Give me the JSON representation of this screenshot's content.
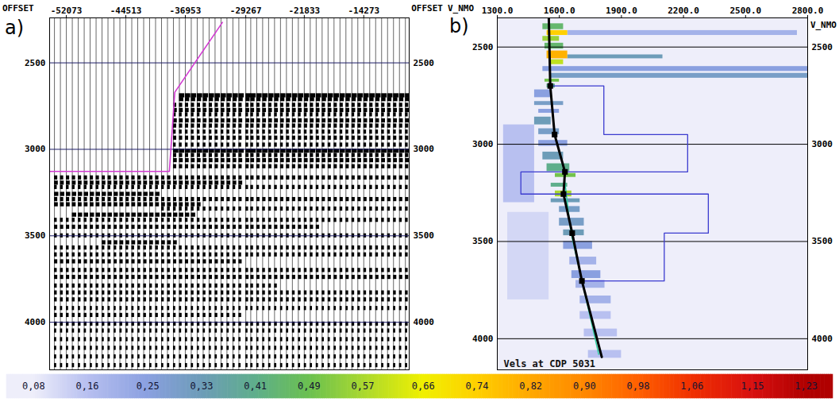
{
  "chart_data": [
    {
      "type": "seismic_gather",
      "panel_label": "a)",
      "x_label": "OFFSET",
      "xlim": [
        -54200,
        -8500
      ],
      "xticks": [
        -52073,
        -44513,
        -36953,
        -29267,
        -21833,
        -14273
      ],
      "ylim": [
        2240,
        4275
      ],
      "yticks": [
        2500,
        3000,
        3500,
        4000
      ],
      "grid": true,
      "traces": [
        -53585,
        -52829,
        -52073,
        -51317,
        -50561,
        -49805,
        -49049,
        -48293,
        -47537,
        -46781,
        -46025,
        -45269,
        -44513,
        -43757,
        -43001,
        -42245,
        -41489,
        -40733,
        -39977,
        -39221,
        -38465,
        -37709,
        -36953,
        -36197,
        -35441,
        -34685,
        -33929,
        -33173,
        -32417,
        -31661,
        -30905,
        -30149,
        -29267,
        -28637,
        -27881,
        -27125,
        -26369,
        -25613,
        -24857,
        -24101,
        -23345,
        -22589,
        -21833,
        -21077,
        -20321,
        -19565,
        -18809,
        -18053,
        -17297,
        -16541,
        -15785,
        -15029,
        -14273,
        -13517,
        -12761,
        -12005,
        -11249,
        -10493,
        -9737,
        -8981
      ],
      "events": [
        {
          "t": 2690,
          "x1": -38300,
          "x2": -8500,
          "amplitude": 1.0
        },
        {
          "t": 2712,
          "x1": -38300,
          "x2": -8500,
          "amplitude": 0.8
        },
        {
          "t": 2745,
          "x1": -38500,
          "x2": -8500,
          "amplitude": 0.6
        },
        {
          "t": 2775,
          "x1": -38500,
          "x2": -8500,
          "amplitude": 0.7
        },
        {
          "t": 2800,
          "x1": -38500,
          "x2": -8500,
          "amplitude": 0.5
        },
        {
          "t": 2835,
          "x1": -38600,
          "x2": -8500,
          "amplitude": 0.7
        },
        {
          "t": 2865,
          "x1": -38600,
          "x2": -8500,
          "amplitude": 0.6
        },
        {
          "t": 2900,
          "x1": -38700,
          "x2": -8500,
          "amplitude": 0.5
        },
        {
          "t": 2935,
          "x1": -38700,
          "x2": -8500,
          "amplitude": 0.6
        },
        {
          "t": 2975,
          "x1": -38800,
          "x2": -8500,
          "amplitude": 0.5
        },
        {
          "t": 3010,
          "x1": -39000,
          "x2": -8500,
          "amplitude": 1.0
        },
        {
          "t": 3035,
          "x1": -38900,
          "x2": -8500,
          "amplitude": 0.6
        },
        {
          "t": 3065,
          "x1": -38900,
          "x2": -8500,
          "amplitude": 0.7
        },
        {
          "t": 3100,
          "x1": -38900,
          "x2": -8500,
          "amplitude": 0.6
        },
        {
          "t": 3165,
          "x1": -54200,
          "x2": -8500,
          "amplitude": 0.6
        },
        {
          "t": 3195,
          "x1": -54200,
          "x2": -30000,
          "amplitude": 0.7
        },
        {
          "t": 3220,
          "x1": -54200,
          "x2": -8500,
          "amplitude": 0.5
        },
        {
          "t": 3260,
          "x1": -54200,
          "x2": -40000,
          "amplitude": 0.8
        },
        {
          "t": 3290,
          "x1": -54200,
          "x2": -8500,
          "amplitude": 0.6
        },
        {
          "t": 3320,
          "x1": -54200,
          "x2": -35000,
          "amplitude": 0.7
        },
        {
          "t": 3345,
          "x1": -40000,
          "x2": -8500,
          "amplitude": 0.5
        },
        {
          "t": 3380,
          "x1": -52000,
          "x2": -36000,
          "amplitude": 0.8
        },
        {
          "t": 3410,
          "x1": -54200,
          "x2": -8500,
          "amplitude": 0.5
        },
        {
          "t": 3450,
          "x1": -54200,
          "x2": -20000,
          "amplitude": 0.6
        },
        {
          "t": 3500,
          "x1": -54200,
          "x2": -8500,
          "amplitude": 0.5
        },
        {
          "t": 3540,
          "x1": -48000,
          "x2": -38000,
          "amplitude": 0.7
        },
        {
          "t": 3570,
          "x1": -54200,
          "x2": -8500,
          "amplitude": 0.5
        },
        {
          "t": 3610,
          "x1": -54200,
          "x2": -8500,
          "amplitude": 0.5
        },
        {
          "t": 3650,
          "x1": -54200,
          "x2": -30000,
          "amplitude": 0.6
        },
        {
          "t": 3700,
          "x1": -54200,
          "x2": -8500,
          "amplitude": 0.5
        },
        {
          "t": 3740,
          "x1": -54200,
          "x2": -8500,
          "amplitude": 0.6
        },
        {
          "t": 3790,
          "x1": -54200,
          "x2": -25000,
          "amplitude": 0.5
        },
        {
          "t": 3830,
          "x1": -54200,
          "x2": -8500,
          "amplitude": 0.5
        },
        {
          "t": 3870,
          "x1": -54200,
          "x2": -8500,
          "amplitude": 0.5
        },
        {
          "t": 3920,
          "x1": -54200,
          "x2": -8500,
          "amplitude": 0.4
        },
        {
          "t": 3960,
          "x1": -54200,
          "x2": -30000,
          "amplitude": 0.5
        },
        {
          "t": 4010,
          "x1": -54200,
          "x2": -8500,
          "amplitude": 0.5
        },
        {
          "t": 4050,
          "x1": -54200,
          "x2": -8500,
          "amplitude": 0.4
        },
        {
          "t": 4100,
          "x1": -54200,
          "x2": -8500,
          "amplitude": 0.4
        },
        {
          "t": 4150,
          "x1": -54200,
          "x2": -8500,
          "amplitude": 0.4
        },
        {
          "t": 4200,
          "x1": -54200,
          "x2": -8500,
          "amplitude": 0.4
        },
        {
          "t": 4250,
          "x1": -54200,
          "x2": -8500,
          "amplitude": 0.4
        }
      ],
      "mute": {
        "color": "#d23ad2",
        "x": [
          -32230,
          -38290,
          -38980,
          -54200
        ],
        "t": [
          2266,
          2670,
          3128,
          3128
        ]
      }
    },
    {
      "type": "velocity_spectrum",
      "panel_label": "b)",
      "x_label": "V_NMO",
      "xlim": [
        1300,
        2800
      ],
      "xticks": [
        {
          "value": 1300,
          "label": "1300.0"
        },
        {
          "value": 1600,
          "label": "1600.0"
        },
        {
          "value": 1900,
          "label": "1900.0"
        },
        {
          "value": 2200,
          "label": "2200.0"
        },
        {
          "value": 2500,
          "label": "2500.0"
        },
        {
          "value": 2800,
          "label": "2800.0"
        }
      ],
      "ylim": [
        2350,
        4160
      ],
      "yticks": [
        2500,
        3000,
        3500,
        4000
      ],
      "grid": true,
      "annotation": "Vels at CDP 5031",
      "semblance": [
        {
          "t1": 2380,
          "t2": 2410,
          "v1": 1520,
          "v2": 1620,
          "value": 0.45
        },
        {
          "t1": 2415,
          "t2": 2440,
          "v1": 1640,
          "v2": 2750,
          "value": 0.2
        },
        {
          "t1": 2415,
          "t2": 2440,
          "v1": 1540,
          "v2": 1640,
          "value": 0.74
        },
        {
          "t1": 2445,
          "t2": 2470,
          "v1": 1520,
          "v2": 1600,
          "value": 0.55
        },
        {
          "t1": 2480,
          "t2": 2510,
          "v1": 1530,
          "v2": 1620,
          "value": 0.45
        },
        {
          "t1": 2540,
          "t2": 2560,
          "v1": 1640,
          "v2": 2100,
          "value": 0.33
        },
        {
          "t1": 2520,
          "t2": 2560,
          "v1": 1540,
          "v2": 1640,
          "value": 0.8
        },
        {
          "t1": 2565,
          "t2": 2590,
          "v1": 1560,
          "v2": 1620,
          "value": 0.6
        },
        {
          "t1": 2600,
          "t2": 2625,
          "v1": 1520,
          "v2": 2800,
          "value": 0.25
        },
        {
          "t1": 2635,
          "t2": 2660,
          "v1": 1560,
          "v2": 2800,
          "value": 0.3
        },
        {
          "t1": 2665,
          "t2": 2680,
          "v1": 1530,
          "v2": 1600,
          "value": 0.5
        },
        {
          "t1": 2690,
          "t2": 2710,
          "v1": 1540,
          "v2": 1580,
          "value": 0.41
        },
        {
          "t1": 2720,
          "t2": 2760,
          "v1": 1480,
          "v2": 1560,
          "value": 0.25
        },
        {
          "t1": 2780,
          "t2": 2800,
          "v1": 1480,
          "v2": 1620,
          "value": 0.3
        },
        {
          "t1": 2820,
          "t2": 2840,
          "v1": 1500,
          "v2": 1600,
          "value": 0.25
        },
        {
          "t1": 2860,
          "t2": 2900,
          "v1": 1480,
          "v2": 1560,
          "value": 0.33
        },
        {
          "t1": 2900,
          "t2": 3300,
          "v1": 1330,
          "v2": 1480,
          "value": 0.16
        },
        {
          "t1": 2920,
          "t2": 2950,
          "v1": 1500,
          "v2": 1600,
          "value": 0.3
        },
        {
          "t1": 2980,
          "t2": 3010,
          "v1": 1500,
          "v2": 1640,
          "value": 0.25
        },
        {
          "t1": 3040,
          "t2": 3080,
          "v1": 1520,
          "v2": 1620,
          "value": 0.33
        },
        {
          "t1": 3100,
          "t2": 3140,
          "v1": 1540,
          "v2": 1650,
          "value": 0.41
        },
        {
          "t1": 3150,
          "t2": 3170,
          "v1": 1580,
          "v2": 1680,
          "value": 0.5
        },
        {
          "t1": 3200,
          "t2": 3220,
          "v1": 1560,
          "v2": 1640,
          "value": 0.41
        },
        {
          "t1": 3240,
          "t2": 3270,
          "v1": 1580,
          "v2": 1660,
          "value": 0.57
        },
        {
          "t1": 3280,
          "t2": 3300,
          "v1": 1560,
          "v2": 1700,
          "value": 0.33
        },
        {
          "t1": 3350,
          "t2": 3800,
          "v1": 1350,
          "v2": 1550,
          "value": 0.12
        },
        {
          "t1": 3320,
          "t2": 3350,
          "v1": 1600,
          "v2": 1700,
          "value": 0.3
        },
        {
          "t1": 3380,
          "t2": 3420,
          "v1": 1600,
          "v2": 1720,
          "value": 0.3
        },
        {
          "t1": 3440,
          "t2": 3470,
          "v1": 1620,
          "v2": 1720,
          "value": 0.33
        },
        {
          "t1": 3500,
          "t2": 3540,
          "v1": 1620,
          "v2": 1760,
          "value": 0.25
        },
        {
          "t1": 3580,
          "t2": 3620,
          "v1": 1650,
          "v2": 1780,
          "value": 0.2
        },
        {
          "t1": 3650,
          "t2": 3690,
          "v1": 1660,
          "v2": 1800,
          "value": 0.25
        },
        {
          "t1": 3700,
          "t2": 3740,
          "v1": 1680,
          "v2": 1820,
          "value": 0.2
        },
        {
          "t1": 3780,
          "t2": 3820,
          "v1": 1700,
          "v2": 1850,
          "value": 0.2
        },
        {
          "t1": 3860,
          "t2": 3900,
          "v1": 1700,
          "v2": 1850,
          "value": 0.16
        },
        {
          "t1": 3950,
          "t2": 3990,
          "v1": 1720,
          "v2": 1880,
          "value": 0.16
        },
        {
          "t1": 4060,
          "t2": 4100,
          "v1": 1740,
          "v2": 1900,
          "value": 0.16
        }
      ],
      "colorbar": {
        "range": [
          0.04,
          1.27
        ],
        "ticks": [
          {
            "value": 0.08,
            "label": "0,08"
          },
          {
            "value": 0.16,
            "label": "0,16"
          },
          {
            "value": 0.25,
            "label": "0,25"
          },
          {
            "value": 0.33,
            "label": "0,33"
          },
          {
            "value": 0.41,
            "label": "0,41"
          },
          {
            "value": 0.49,
            "label": "0,49"
          },
          {
            "value": 0.57,
            "label": "0,57"
          },
          {
            "value": 0.66,
            "label": "0,66"
          },
          {
            "value": 0.74,
            "label": "0,74"
          },
          {
            "value": 0.82,
            "label": "0,82"
          },
          {
            "value": 0.9,
            "label": "0,90"
          },
          {
            "value": 0.98,
            "label": "0,98"
          },
          {
            "value": 1.06,
            "label": "1,06"
          },
          {
            "value": 1.15,
            "label": "1,15"
          },
          {
            "value": 1.23,
            "label": "1,23"
          }
        ],
        "colors": [
          "#eeeefa",
          "#b8c0f0",
          "#8aa0e0",
          "#6d9cb8",
          "#5fae8c",
          "#6ac050",
          "#a8d830",
          "#f0f000",
          "#ffd000",
          "#ffa800",
          "#ff8800",
          "#ff6000",
          "#f03000",
          "#d81010",
          "#b00000"
        ]
      },
      "series": [
        {
          "type": "line",
          "color": "#2fd0a0",
          "t": [
            3150,
            3450,
            4080
          ],
          "v": [
            1622,
            1655,
            1790
          ]
        },
        {
          "type": "step",
          "color": "#3b3bcf",
          "t_top": [
            2700,
            2950,
            3142,
            3256,
            3457
          ],
          "t_bottom": [
            2950,
            3142,
            3256,
            3457,
            3703
          ],
          "v": [
            1815,
            2220,
            1414,
            2320,
            2107
          ]
        },
        {
          "type": "line",
          "color": "#000000",
          "t": [
            2350,
            2700,
            2950,
            3142,
            3256,
            3457,
            3703,
            4094
          ],
          "v": [
            1549,
            1556,
            1577,
            1627,
            1620,
            1662,
            1709,
            1805
          ]
        },
        {
          "type": "scatter",
          "marker": "square",
          "color": "#000000",
          "t": [
            2700,
            2950,
            3142,
            3256,
            3457,
            3703
          ],
          "v": [
            1556,
            1577,
            1627,
            1620,
            1662,
            1709
          ]
        }
      ]
    }
  ]
}
